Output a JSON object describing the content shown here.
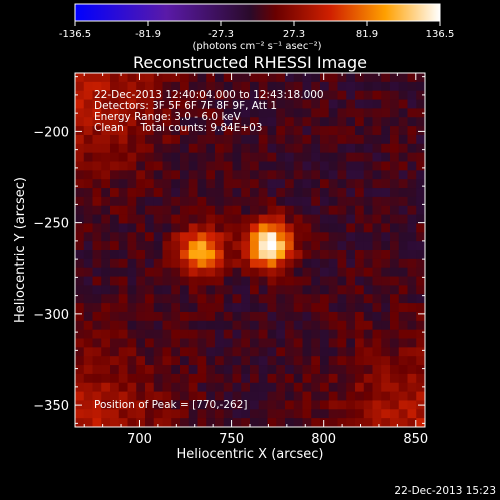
{
  "colorbar": {
    "ticks": [
      "-136.5",
      "-81.9",
      "-27.3",
      "27.3",
      "81.9",
      "136.5"
    ],
    "tick_values": [
      -136.5,
      -81.9,
      -27.3,
      27.3,
      81.9,
      136.5
    ],
    "range": [
      -136.5,
      136.5
    ],
    "units": "(photons cm⁻² s⁻¹ asec⁻²)"
  },
  "chart_data": {
    "type": "heatmap",
    "title": "Reconstructed RHESSI Image",
    "xlabel": "Heliocentric X (arcsec)",
    "ylabel": "Heliocentric Y (arcsec)",
    "xlim": [
      665,
      855
    ],
    "ylim": [
      -362,
      -168
    ],
    "x_ticks": [
      "700",
      "750",
      "800",
      "850"
    ],
    "x_tick_values": [
      700,
      750,
      800,
      850
    ],
    "y_ticks": [
      "-200",
      "-250",
      "-300",
      "-350"
    ],
    "y_tick_values": [
      -200,
      -250,
      -300,
      -350
    ],
    "colormap": "blue-purple-red-yellow-white",
    "info_lines": [
      "22-Dec-2013 12:40:04.000 to 12:43:18.000",
      "Detectors: 3F 5F 6F 7F 8F 9F, Att 1",
      "Energy Range: 3.0 - 6.0 keV",
      "Clean     Total counts: 9.84E+03"
    ],
    "peak_text": "Position of Peak = [770,-262]",
    "peak": [
      770,
      -262
    ],
    "sources": [
      {
        "x": 770,
        "y": -262,
        "amplitude": 136.5
      },
      {
        "x": 733,
        "y": -266,
        "amplitude": 100
      }
    ]
  },
  "footer_timestamp": "22-Dec-2013 15:23"
}
